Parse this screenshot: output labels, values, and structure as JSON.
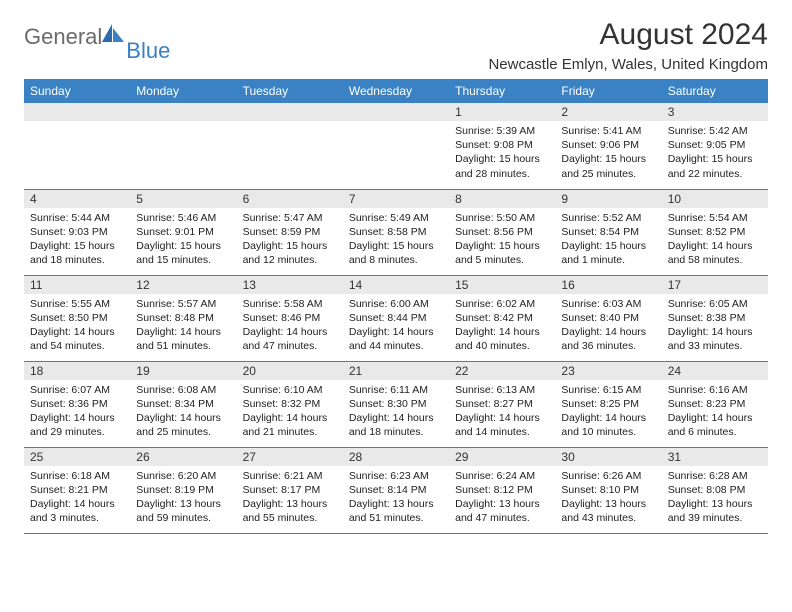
{
  "logo": {
    "part1": "General",
    "part2": "Blue"
  },
  "title": "August 2024",
  "subtitle": "Newcastle Emlyn, Wales, United Kingdom",
  "colors": {
    "header_bg": "#3a82c4",
    "header_text": "#ffffff",
    "daynum_bg": "#e9e9e9",
    "row_border": "#3a82c4",
    "body_text": "#222222",
    "logo_gray": "#6b6b6b",
    "logo_blue": "#3a7fc4"
  },
  "fontsize": {
    "title": 30,
    "subtitle": 15,
    "th": 12,
    "daynum": 12,
    "body": 10.5
  },
  "weekdays": [
    "Sunday",
    "Monday",
    "Tuesday",
    "Wednesday",
    "Thursday",
    "Friday",
    "Saturday"
  ],
  "weeks": [
    [
      null,
      null,
      null,
      null,
      {
        "n": "1",
        "sunrise": "5:39 AM",
        "sunset": "9:08 PM",
        "dl": "15 hours and 28 minutes."
      },
      {
        "n": "2",
        "sunrise": "5:41 AM",
        "sunset": "9:06 PM",
        "dl": "15 hours and 25 minutes."
      },
      {
        "n": "3",
        "sunrise": "5:42 AM",
        "sunset": "9:05 PM",
        "dl": "15 hours and 22 minutes."
      }
    ],
    [
      {
        "n": "4",
        "sunrise": "5:44 AM",
        "sunset": "9:03 PM",
        "dl": "15 hours and 18 minutes."
      },
      {
        "n": "5",
        "sunrise": "5:46 AM",
        "sunset": "9:01 PM",
        "dl": "15 hours and 15 minutes."
      },
      {
        "n": "6",
        "sunrise": "5:47 AM",
        "sunset": "8:59 PM",
        "dl": "15 hours and 12 minutes."
      },
      {
        "n": "7",
        "sunrise": "5:49 AM",
        "sunset": "8:58 PM",
        "dl": "15 hours and 8 minutes."
      },
      {
        "n": "8",
        "sunrise": "5:50 AM",
        "sunset": "8:56 PM",
        "dl": "15 hours and 5 minutes."
      },
      {
        "n": "9",
        "sunrise": "5:52 AM",
        "sunset": "8:54 PM",
        "dl": "15 hours and 1 minute."
      },
      {
        "n": "10",
        "sunrise": "5:54 AM",
        "sunset": "8:52 PM",
        "dl": "14 hours and 58 minutes."
      }
    ],
    [
      {
        "n": "11",
        "sunrise": "5:55 AM",
        "sunset": "8:50 PM",
        "dl": "14 hours and 54 minutes."
      },
      {
        "n": "12",
        "sunrise": "5:57 AM",
        "sunset": "8:48 PM",
        "dl": "14 hours and 51 minutes."
      },
      {
        "n": "13",
        "sunrise": "5:58 AM",
        "sunset": "8:46 PM",
        "dl": "14 hours and 47 minutes."
      },
      {
        "n": "14",
        "sunrise": "6:00 AM",
        "sunset": "8:44 PM",
        "dl": "14 hours and 44 minutes."
      },
      {
        "n": "15",
        "sunrise": "6:02 AM",
        "sunset": "8:42 PM",
        "dl": "14 hours and 40 minutes."
      },
      {
        "n": "16",
        "sunrise": "6:03 AM",
        "sunset": "8:40 PM",
        "dl": "14 hours and 36 minutes."
      },
      {
        "n": "17",
        "sunrise": "6:05 AM",
        "sunset": "8:38 PM",
        "dl": "14 hours and 33 minutes."
      }
    ],
    [
      {
        "n": "18",
        "sunrise": "6:07 AM",
        "sunset": "8:36 PM",
        "dl": "14 hours and 29 minutes."
      },
      {
        "n": "19",
        "sunrise": "6:08 AM",
        "sunset": "8:34 PM",
        "dl": "14 hours and 25 minutes."
      },
      {
        "n": "20",
        "sunrise": "6:10 AM",
        "sunset": "8:32 PM",
        "dl": "14 hours and 21 minutes."
      },
      {
        "n": "21",
        "sunrise": "6:11 AM",
        "sunset": "8:30 PM",
        "dl": "14 hours and 18 minutes."
      },
      {
        "n": "22",
        "sunrise": "6:13 AM",
        "sunset": "8:27 PM",
        "dl": "14 hours and 14 minutes."
      },
      {
        "n": "23",
        "sunrise": "6:15 AM",
        "sunset": "8:25 PM",
        "dl": "14 hours and 10 minutes."
      },
      {
        "n": "24",
        "sunrise": "6:16 AM",
        "sunset": "8:23 PM",
        "dl": "14 hours and 6 minutes."
      }
    ],
    [
      {
        "n": "25",
        "sunrise": "6:18 AM",
        "sunset": "8:21 PM",
        "dl": "14 hours and 3 minutes."
      },
      {
        "n": "26",
        "sunrise": "6:20 AM",
        "sunset": "8:19 PM",
        "dl": "13 hours and 59 minutes."
      },
      {
        "n": "27",
        "sunrise": "6:21 AM",
        "sunset": "8:17 PM",
        "dl": "13 hours and 55 minutes."
      },
      {
        "n": "28",
        "sunrise": "6:23 AM",
        "sunset": "8:14 PM",
        "dl": "13 hours and 51 minutes."
      },
      {
        "n": "29",
        "sunrise": "6:24 AM",
        "sunset": "8:12 PM",
        "dl": "13 hours and 47 minutes."
      },
      {
        "n": "30",
        "sunrise": "6:26 AM",
        "sunset": "8:10 PM",
        "dl": "13 hours and 43 minutes."
      },
      {
        "n": "31",
        "sunrise": "6:28 AM",
        "sunset": "8:08 PM",
        "dl": "13 hours and 39 minutes."
      }
    ]
  ],
  "labels": {
    "sunrise": "Sunrise:",
    "sunset": "Sunset:",
    "daylight": "Daylight:"
  }
}
